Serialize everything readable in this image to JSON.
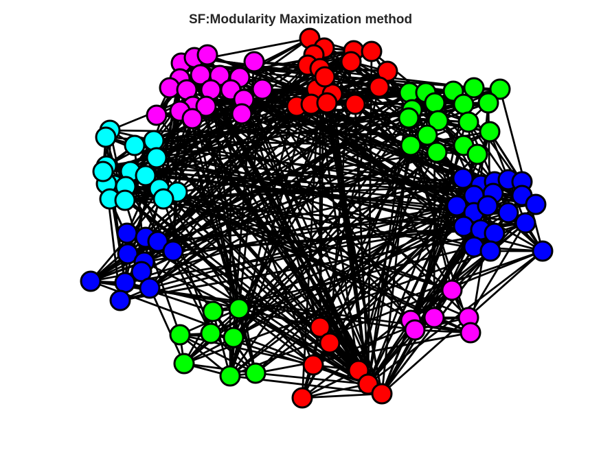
{
  "title": "SF:Modularity Maximization method",
  "colors": {
    "magenta": "#ff00ff",
    "red": "#ff0000",
    "green": "#00ff00",
    "cyan": "#00ffff",
    "blue": "#0000ff",
    "edge": "#000000",
    "background": "#ffffff"
  },
  "communities": [
    {
      "name": "magenta-top",
      "color": "magenta"
    },
    {
      "name": "red-top",
      "color": "red"
    },
    {
      "name": "green-right",
      "color": "green"
    },
    {
      "name": "cyan-left",
      "color": "cyan"
    },
    {
      "name": "blue-right",
      "color": "blue"
    },
    {
      "name": "blue-left",
      "color": "blue"
    },
    {
      "name": "green-bottom",
      "color": "green"
    },
    {
      "name": "red-bottom",
      "color": "red"
    },
    {
      "name": "magenta-bottom",
      "color": "magenta"
    }
  ]
}
